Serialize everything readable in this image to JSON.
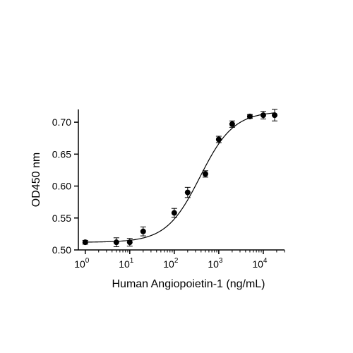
{
  "chart_data": {
    "type": "scatter",
    "xlabel": "Human Angiopoietin-1 (ng/mL)",
    "ylabel": "OD450 nm",
    "x_scale": "log10",
    "xlim": [
      0.7,
      30000
    ],
    "ylim": [
      0.5,
      0.72
    ],
    "x_ticks": [
      {
        "value": 1,
        "base": "10",
        "exp": "0"
      },
      {
        "value": 10,
        "base": "10",
        "exp": "1"
      },
      {
        "value": 100,
        "base": "10",
        "exp": "2"
      },
      {
        "value": 1000,
        "base": "10",
        "exp": "3"
      },
      {
        "value": 10000,
        "base": "10",
        "exp": "4"
      }
    ],
    "y_ticks": [
      {
        "value": 0.5,
        "label": "0.50"
      },
      {
        "value": 0.55,
        "label": "0.55"
      },
      {
        "value": 0.6,
        "label": "0.60"
      },
      {
        "value": 0.65,
        "label": "0.65"
      },
      {
        "value": 0.7,
        "label": "0.70"
      }
    ],
    "points": [
      {
        "x": 1.0,
        "y": 0.512,
        "err": 0.003
      },
      {
        "x": 5.0,
        "y": 0.512,
        "err": 0.007
      },
      {
        "x": 10.0,
        "y": 0.512,
        "err": 0.006
      },
      {
        "x": 20.0,
        "y": 0.529,
        "err": 0.007
      },
      {
        "x": 100.0,
        "y": 0.558,
        "err": 0.007
      },
      {
        "x": 200.0,
        "y": 0.59,
        "err": 0.008
      },
      {
        "x": 500.0,
        "y": 0.619,
        "err": 0.005
      },
      {
        "x": 1000.0,
        "y": 0.673,
        "err": 0.005
      },
      {
        "x": 2000.0,
        "y": 0.697,
        "err": 0.005
      },
      {
        "x": 5000.0,
        "y": 0.709,
        "err": 0.003
      },
      {
        "x": 10000.0,
        "y": 0.711,
        "err": 0.006
      },
      {
        "x": 18000.0,
        "y": 0.711,
        "err": 0.009
      }
    ],
    "fit": {
      "model": "4PL",
      "bottom": 0.512,
      "top": 0.717,
      "ec50": 380,
      "hill": 1.15
    },
    "grid": false,
    "colors": {
      "marker": "#000000",
      "line": "#000000",
      "background": "#ffffff"
    }
  }
}
